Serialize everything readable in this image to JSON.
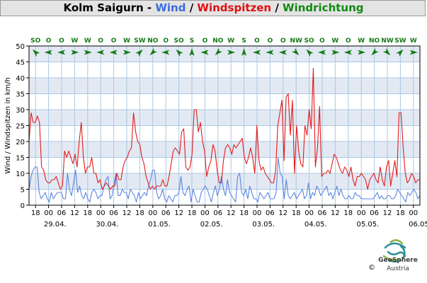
{
  "title": {
    "station": "Kolm Saigurn - ",
    "wind": "Wind",
    "sep1": " / ",
    "gusts": "Windspitzen",
    "sep2": " / ",
    "direction": "Windrichtung"
  },
  "colors": {
    "wind": "#5b84e0",
    "gusts": "#e11b1b",
    "direction": "#137a13",
    "band": "#e3e9f3",
    "grid": "#a9c8e3",
    "title_station": "#000000"
  },
  "logo": {
    "name": "GeoSphere",
    "country": "Austria",
    "copyright": "©"
  },
  "chart_data": {
    "type": "line",
    "ylabel": "Wind / Windspitzen in km/h",
    "ylim": [
      0,
      50
    ],
    "yticks": [
      0,
      5,
      10,
      15,
      20,
      25,
      30,
      35,
      40,
      45,
      50
    ],
    "x_hour_labels": [
      "18",
      "00",
      "06",
      "12",
      "18",
      "00",
      "06",
      "12",
      "18",
      "00",
      "06",
      "12",
      "18",
      "00",
      "06",
      "12",
      "18",
      "00",
      "06",
      "12",
      "18",
      "00",
      "06",
      "12",
      "18",
      "00",
      "06",
      "12",
      "18",
      "00"
    ],
    "date_labels": [
      "29.04.",
      "30.04.",
      "01.05.",
      "02.05.",
      "03.05.",
      "04.05.",
      "05.05.",
      "06.05."
    ],
    "direction_labels": [
      "SO",
      "O",
      "O",
      "W",
      "W",
      "O",
      "O",
      "W",
      "SW",
      "NO",
      "O",
      "SO",
      "S",
      "O",
      "NO",
      "W",
      "S",
      "O",
      "O",
      "O",
      "NW",
      "SO",
      "O",
      "W",
      "O",
      "W",
      "NO",
      "NW",
      "SW",
      "W"
    ],
    "series": [
      {
        "name": "Wind",
        "color": "#5b84e0",
        "values": [
          5,
          9,
          11,
          12,
          12,
          4,
          2,
          3,
          4,
          2,
          1,
          4,
          2,
          3,
          4,
          4,
          4,
          2,
          2,
          10,
          5,
          3,
          7,
          11,
          4,
          6,
          3,
          2,
          4,
          2,
          1,
          4,
          5,
          4,
          2,
          3,
          3,
          6,
          8,
          9,
          2,
          3,
          7,
          10,
          3,
          3,
          5,
          4,
          4,
          2,
          5,
          4,
          3,
          1,
          4,
          2,
          3,
          4,
          3,
          6,
          8,
          11,
          11,
          4,
          2,
          3,
          5,
          2,
          1,
          3,
          2,
          1,
          3,
          3,
          4,
          9,
          4,
          3,
          5,
          6,
          1,
          5,
          3,
          1,
          1,
          4,
          5,
          6,
          5,
          3,
          1,
          4,
          6,
          3,
          5,
          9,
          5,
          3,
          8,
          4,
          3,
          2,
          1,
          9,
          10,
          4,
          3,
          5,
          2,
          6,
          4,
          2,
          2,
          1,
          4,
          3,
          2,
          3,
          4,
          2,
          2,
          2,
          4,
          15,
          10,
          9,
          2,
          8,
          3,
          2,
          3,
          4,
          2,
          3,
          4,
          5,
          2,
          3,
          7,
          2,
          4,
          3,
          6,
          5,
          3,
          4,
          5,
          6,
          3,
          4,
          2,
          4,
          6,
          3,
          5,
          3,
          2,
          2,
          3,
          2,
          2,
          4,
          3,
          3,
          2,
          2,
          2,
          2,
          2,
          2,
          2,
          3,
          4,
          2,
          3,
          2,
          2,
          3,
          3,
          2,
          2,
          3,
          5,
          4,
          3,
          2,
          1,
          4,
          3,
          4,
          5,
          4,
          2,
          3
        ]
      },
      {
        "name": "Windspitzen",
        "color": "#e11b1b",
        "values": [
          20,
          29,
          26,
          26,
          28,
          26,
          12,
          11,
          8,
          7,
          7,
          8,
          8,
          9,
          7,
          5,
          6,
          17,
          15,
          17,
          15,
          13,
          16,
          12,
          20,
          26,
          15,
          10,
          12,
          12,
          15,
          10,
          10,
          7,
          8,
          5,
          6,
          7,
          6,
          5,
          6,
          6,
          10,
          8,
          8,
          12,
          14,
          15,
          17,
          18,
          29,
          23,
          20,
          19,
          15,
          13,
          9,
          7,
          5,
          6,
          5,
          6,
          6,
          6,
          8,
          6,
          6,
          9,
          13,
          17,
          18,
          17,
          16,
          23,
          24,
          12,
          11,
          12,
          16,
          30,
          30,
          23,
          26,
          20,
          17,
          9,
          12,
          14,
          19,
          17,
          11,
          7,
          7,
          14,
          18,
          19,
          18,
          16,
          19,
          18,
          19,
          20,
          21,
          15,
          13,
          15,
          18,
          15,
          10,
          25,
          14,
          11,
          12,
          10,
          9,
          8,
          7,
          7,
          11,
          25,
          29,
          33,
          14,
          34,
          35,
          22,
          33,
          10,
          25,
          17,
          13,
          12,
          25,
          22,
          30,
          24,
          43,
          12,
          18,
          31,
          9,
          10,
          10,
          11,
          10,
          13,
          16,
          15,
          13,
          11,
          10,
          12,
          11,
          9,
          12,
          8,
          6,
          9,
          9,
          10,
          9,
          8,
          5,
          8,
          9,
          10,
          8,
          7,
          12,
          8,
          6,
          12,
          14,
          6,
          10,
          14,
          9,
          29,
          29,
          18,
          10,
          7,
          8,
          10,
          9,
          7,
          8,
          8
        ]
      }
    ],
    "grid": true
  }
}
